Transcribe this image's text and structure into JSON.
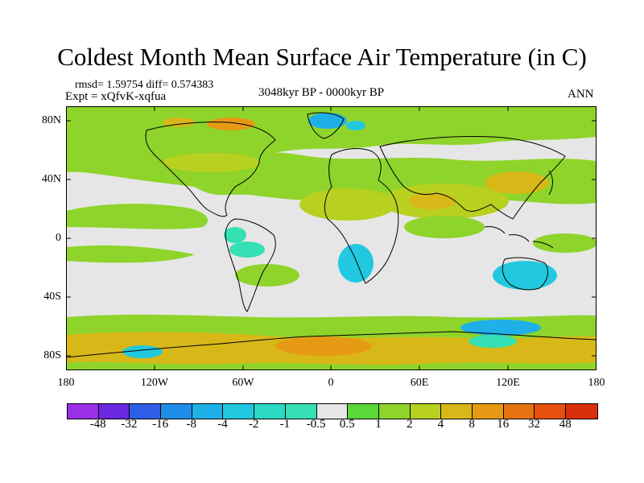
{
  "title": "Coldest Month Mean Surface Air Temperature (in C)",
  "stats": "rmsd= 1.59754 diff= 0.574383",
  "experiment": "Expt = xQfvK-xqfua",
  "period": "3048kyr BP - 0000kyr BP",
  "season": "ANN",
  "map": {
    "latitude_labels": [
      "80N",
      "40N",
      "0",
      "40S",
      "80S"
    ],
    "longitude_labels": [
      "180",
      "120W",
      "60W",
      "0",
      "60E",
      "120E",
      "180"
    ]
  },
  "legend": {
    "labels": [
      "-48",
      "-32",
      "-16",
      "-8",
      "-4",
      "-2",
      "-1",
      "-0.5",
      "0.5",
      "1",
      "2",
      "4",
      "8",
      "16",
      "32",
      "48"
    ],
    "colors": [
      "#9b2fe6",
      "#6a28e0",
      "#2f5ee6",
      "#1f8ee8",
      "#1fb0e8",
      "#22c8e0",
      "#2ad8c4",
      "#34e0b4",
      "#e6e6e6",
      "#5ad838",
      "#8ed42a",
      "#b8d020",
      "#d8b818",
      "#e69a14",
      "#e67210",
      "#e6500c",
      "#d8300a"
    ]
  },
  "colors": {
    "background": "#ffffff",
    "neutral_field": "#e6e6e6",
    "coastline": "#000000"
  }
}
